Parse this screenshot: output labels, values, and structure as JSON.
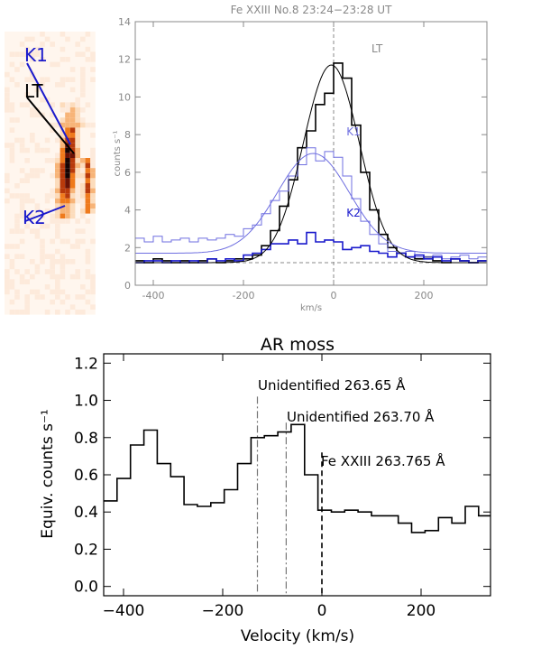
{
  "chart_data": [
    {
      "type": "heatmap",
      "description_labels": [
        "K1",
        "LT",
        "K2"
      ],
      "colors": {
        "slit_K": "#1a1acc",
        "slit_LT": "#000000"
      }
    },
    {
      "type": "line",
      "title": "Fe XXIII No.8 23:24−23:28 UT",
      "xlabel": "km/s",
      "ylabel": "counts s⁻¹",
      "xlim": [
        -440,
        340
      ],
      "ylim": [
        0,
        14
      ],
      "xticks": [
        -400,
        -200,
        0,
        200
      ],
      "yticks": [
        0,
        2,
        4,
        6,
        8,
        10,
        12,
        14
      ],
      "baseline": 1.2,
      "vline_x": 0,
      "annotations": {
        "lt": "LT",
        "k1": "K1",
        "k2": "K2"
      },
      "colors": {
        "lt": "#000000",
        "k1": "#6f6fe0",
        "k2": "#1a1acc",
        "axis": "#888888"
      },
      "step_x": [
        -440,
        -420,
        -400,
        -380,
        -360,
        -340,
        -320,
        -300,
        -280,
        -260,
        -240,
        -220,
        -200,
        -180,
        -160,
        -140,
        -120,
        -100,
        -80,
        -60,
        -40,
        -20,
        0,
        20,
        40,
        60,
        80,
        100,
        120,
        140,
        160,
        180,
        200,
        220,
        240,
        260,
        280,
        300,
        320
      ],
      "series": [
        {
          "name": "LT",
          "values": [
            1.3,
            1.2,
            1.4,
            1.3,
            1.2,
            1.3,
            1.2,
            1.3,
            1.4,
            1.2,
            1.3,
            1.4,
            1.4,
            1.6,
            2.1,
            2.9,
            4.2,
            5.6,
            7.3,
            8.2,
            9.6,
            10.2,
            11.8,
            11.0,
            8.5,
            6.0,
            4.0,
            2.7,
            2.0,
            1.7,
            1.5,
            1.4,
            1.5,
            1.3,
            1.2,
            1.4,
            1.3,
            1.2,
            1.3
          ]
        },
        {
          "name": "K1",
          "values": [
            2.5,
            2.3,
            2.6,
            2.3,
            2.4,
            2.5,
            2.3,
            2.5,
            2.4,
            2.5,
            2.7,
            2.6,
            3.0,
            3.2,
            3.8,
            4.5,
            5.0,
            5.8,
            6.4,
            7.3,
            6.6,
            7.1,
            6.8,
            5.8,
            4.6,
            3.4,
            2.7,
            2.2,
            1.8,
            1.7,
            1.8,
            1.5,
            1.5,
            1.6,
            1.4,
            1.5,
            1.6,
            1.4,
            1.5
          ]
        },
        {
          "name": "K2",
          "values": [
            1.2,
            1.3,
            1.3,
            1.2,
            1.3,
            1.2,
            1.3,
            1.2,
            1.4,
            1.3,
            1.4,
            1.3,
            1.6,
            1.7,
            1.9,
            2.2,
            2.2,
            2.4,
            2.2,
            2.8,
            2.3,
            2.4,
            2.3,
            1.9,
            2.0,
            2.1,
            1.8,
            1.7,
            1.5,
            1.7,
            1.5,
            1.6,
            1.4,
            1.5,
            1.3,
            1.4,
            1.3,
            1.2,
            1.3
          ]
        }
      ],
      "fits": [
        {
          "name": "LT fit",
          "base": 1.2,
          "amp": 10.5,
          "center": -5,
          "sigma": 62
        },
        {
          "name": "K1 fit",
          "base": 1.7,
          "amp": 5.3,
          "center": -45,
          "sigma": 80
        }
      ]
    },
    {
      "type": "line",
      "title": "AR moss",
      "xlabel": "Velocity (km/s)",
      "ylabel": "Equiv. counts s⁻¹",
      "xlim": [
        -440,
        340
      ],
      "ylim": [
        -0.05,
        1.25
      ],
      "xticks": [
        -400,
        -200,
        0,
        200
      ],
      "yticks": [
        0.0,
        0.2,
        0.4,
        0.6,
        0.8,
        1.0,
        1.2
      ],
      "step_x": [
        -440,
        -413,
        -386,
        -359,
        -332,
        -305,
        -278,
        -251,
        -224,
        -197,
        -170,
        -143,
        -116,
        -89,
        -62,
        -35,
        -8,
        19,
        46,
        73,
        100,
        127,
        154,
        181,
        208,
        235,
        262,
        289,
        316
      ],
      "values": [
        0.46,
        0.58,
        0.76,
        0.84,
        0.66,
        0.59,
        0.44,
        0.43,
        0.45,
        0.52,
        0.66,
        0.8,
        0.81,
        0.83,
        0.87,
        0.6,
        0.41,
        0.4,
        0.41,
        0.4,
        0.38,
        0.38,
        0.34,
        0.29,
        0.3,
        0.37,
        0.34,
        0.43,
        0.38
      ],
      "lines": [
        {
          "label": "Unidentified 263.65 Å",
          "x": -130,
          "style": "dash-dot"
        },
        {
          "label": "Unidentified 263.70 Å",
          "x": -72,
          "style": "dash-dot"
        },
        {
          "label": "Fe XXIII 263.765 Å",
          "x": 0,
          "style": "dashed"
        }
      ]
    }
  ]
}
